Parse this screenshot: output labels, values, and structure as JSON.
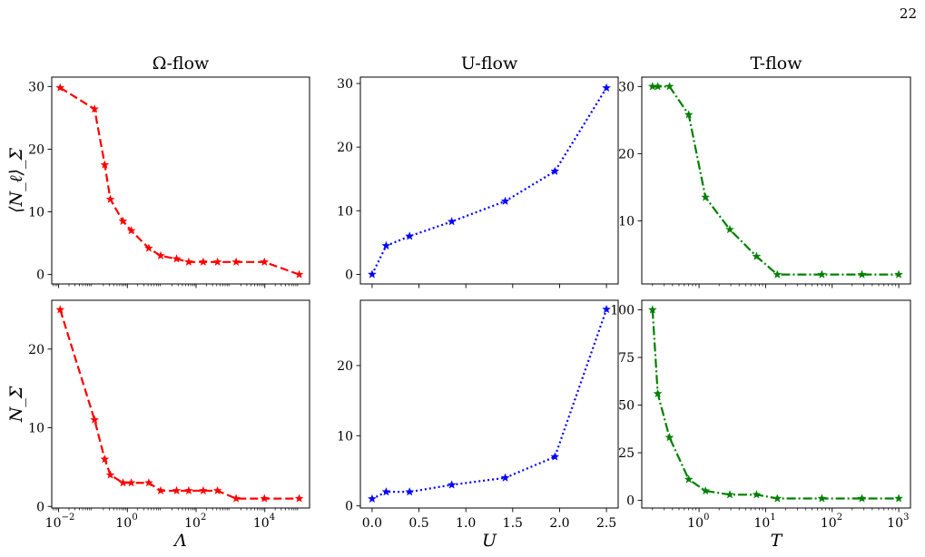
{
  "page_number": "22",
  "chart_data": [
    {
      "id": "omega_N_ell",
      "type": "line",
      "title": "Ω-flow",
      "xlabel": "",
      "ylabel": "⟨N_ℓ⟩_Σ",
      "xscale": "log",
      "xlim": [
        0.0063,
        200000
      ],
      "ylim": [
        -1.5,
        31.5
      ],
      "xticks": [
        0.01,
        1,
        100,
        10000
      ],
      "xtick_labels": [
        "",
        "",
        "",
        ""
      ],
      "yticks": [
        0,
        10,
        20,
        30
      ],
      "ytick_labels": [
        "0",
        "10",
        "20",
        "30"
      ],
      "color": "#ff0000",
      "linestyle": "dashed",
      "marker": "star",
      "x": [
        0.0111,
        0.111,
        0.22,
        0.32,
        0.745,
        1.3,
        4.2,
        9.3,
        27,
        61,
        161,
        420,
        1460,
        9710,
        100000
      ],
      "y": [
        29.8,
        26.4,
        17.5,
        12,
        8.5,
        7,
        4.2,
        3,
        2.5,
        2,
        2,
        2,
        2,
        2,
        0
      ]
    },
    {
      "id": "u_N_ell",
      "type": "line",
      "title": "U-flow",
      "xlabel": "",
      "ylabel": "",
      "xscale": "linear",
      "xlim": [
        -0.125,
        2.625
      ],
      "ylim": [
        -1.5,
        31
      ],
      "xticks": [
        0,
        0.5,
        1.0,
        1.5,
        2.0,
        2.5
      ],
      "xtick_labels": [
        "",
        "",
        "",
        "",
        "",
        ""
      ],
      "yticks": [
        0,
        10,
        20,
        30
      ],
      "ytick_labels": [
        "0",
        "10",
        "20",
        "30"
      ],
      "color": "#0000ff",
      "linestyle": "dotted",
      "marker": "star",
      "x": [
        0,
        0.15,
        0.4,
        0.85,
        1.42,
        1.95,
        2.5
      ],
      "y": [
        0,
        4.5,
        6,
        8.3,
        11.5,
        16.2,
        29.3
      ]
    },
    {
      "id": "t_N_ell",
      "type": "line",
      "title": "T-flow",
      "xlabel": "",
      "ylabel": "",
      "xscale": "log",
      "xlim": [
        0.138,
        1500
      ],
      "ylim": [
        0.6,
        31.4
      ],
      "xticks": [
        1,
        10,
        100,
        1000
      ],
      "xtick_labels": [
        "",
        "",
        "",
        ""
      ],
      "yticks": [
        10,
        20,
        30
      ],
      "ytick_labels": [
        "10",
        "20",
        "30"
      ],
      "color": "#008000",
      "linestyle": "dashdot",
      "marker": "star",
      "x": [
        0.2,
        0.24,
        0.36,
        0.7,
        1.25,
        2.9,
        7.3,
        15,
        70,
        280,
        1000
      ],
      "y": [
        30,
        30,
        30,
        25.8,
        13.5,
        8.7,
        4.7,
        2,
        2,
        2,
        2
      ]
    },
    {
      "id": "omega_N_sigma",
      "type": "line",
      "title": "",
      "xlabel": "Λ",
      "ylabel": "N_Σ",
      "xscale": "log",
      "xlim": [
        0.0063,
        200000
      ],
      "ylim": [
        -0.2,
        26.2
      ],
      "xticks": [
        0.01,
        1,
        100,
        10000
      ],
      "xtick_labels": [
        "10",
        "10",
        "10",
        "10"
      ],
      "xtick_exponents": [
        "−2",
        "0",
        "2",
        "4"
      ],
      "yticks": [
        0,
        10,
        20
      ],
      "ytick_labels": [
        "0",
        "10",
        "20"
      ],
      "color": "#ff0000",
      "linestyle": "dashed",
      "marker": "star",
      "x": [
        0.0111,
        0.111,
        0.22,
        0.32,
        0.745,
        1.3,
        4.2,
        9.3,
        27,
        61,
        161,
        420,
        1460,
        9710,
        100000
      ],
      "y": [
        25,
        11,
        6,
        4,
        3,
        3,
        3,
        2,
        2,
        2,
        2,
        2,
        1,
        1,
        1
      ]
    },
    {
      "id": "u_N_sigma",
      "type": "line",
      "title": "",
      "xlabel": "U",
      "ylabel": "",
      "xscale": "linear",
      "xlim": [
        -0.125,
        2.625
      ],
      "ylim": [
        -0.3,
        29.3
      ],
      "xticks": [
        0,
        0.5,
        1.0,
        1.5,
        2.0,
        2.5
      ],
      "xtick_labels": [
        "0.0",
        "0.5",
        "1.0",
        "1.5",
        "2.0",
        "2.5"
      ],
      "yticks": [
        0,
        10,
        20
      ],
      "ytick_labels": [
        "0",
        "10",
        "20"
      ],
      "color": "#0000ff",
      "linestyle": "dotted",
      "marker": "star",
      "x": [
        0,
        0.15,
        0.4,
        0.85,
        1.42,
        1.95,
        2.5
      ],
      "y": [
        1,
        2,
        2,
        3,
        4,
        7,
        28
      ]
    },
    {
      "id": "t_N_sigma",
      "type": "line",
      "title": "",
      "xlabel": "T",
      "ylabel": "",
      "xscale": "log",
      "xlim": [
        0.138,
        1500
      ],
      "ylim": [
        -4,
        105
      ],
      "xticks": [
        1,
        10,
        100,
        1000
      ],
      "xtick_labels": [
        "10",
        "10",
        "10",
        "10"
      ],
      "xtick_exponents": [
        "0",
        "1",
        "2",
        "3"
      ],
      "yticks": [
        0,
        25,
        50,
        75,
        100
      ],
      "ytick_labels": [
        "0",
        "25",
        "50",
        "75",
        "100"
      ],
      "color": "#008000",
      "linestyle": "dashdot",
      "marker": "star",
      "x": [
        0.2,
        0.24,
        0.36,
        0.7,
        1.25,
        2.9,
        7.3,
        15,
        70,
        280,
        1000
      ],
      "y": [
        100,
        56,
        33,
        11,
        5,
        3,
        3,
        1,
        1,
        1,
        1
      ]
    }
  ]
}
